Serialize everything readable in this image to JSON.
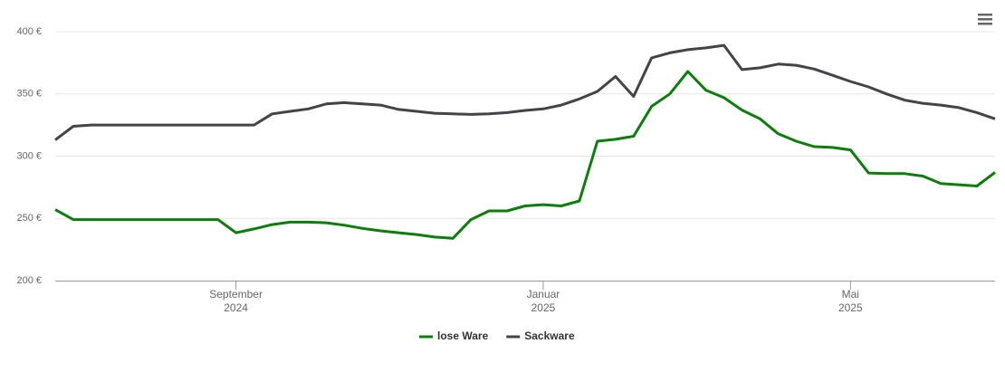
{
  "chart_data": {
    "type": "line",
    "categories": [
      null,
      null,
      null,
      null,
      null,
      null,
      null,
      null,
      null,
      null,
      "September\n2024",
      null,
      null,
      null,
      null,
      null,
      null,
      null,
      null,
      null,
      null,
      null,
      null,
      null,
      null,
      null,
      null,
      "Januar\n2025",
      null,
      null,
      null,
      null,
      null,
      null,
      null,
      null,
      null,
      null,
      null,
      null,
      null,
      null,
      null,
      null,
      "Mai\n2025",
      null,
      null,
      null,
      null,
      null,
      null,
      null,
      null
    ],
    "series": [
      {
        "name": "lose Ware",
        "color": "#0a7f0a",
        "values": [
          257,
          249,
          249,
          249,
          249,
          249,
          249,
          249,
          249,
          249,
          238.5,
          241.5,
          245,
          247,
          247,
          246.5,
          244.5,
          242,
          240,
          238.5,
          237,
          235,
          234,
          249,
          256,
          256,
          260,
          261,
          260,
          264,
          312,
          313.5,
          316,
          340,
          350,
          368,
          353,
          347,
          337,
          330,
          318,
          312,
          307.6,
          307,
          305,
          286.5,
          286,
          286,
          284,
          278,
          277,
          276,
          287
        ]
      },
      {
        "name": "Sackware",
        "color": "#434348",
        "values": [
          313,
          324,
          325,
          325,
          325,
          325,
          325,
          325,
          325,
          325,
          325,
          325,
          334,
          336,
          338,
          342,
          343,
          342,
          341,
          337.5,
          336,
          334.5,
          334,
          333.5,
          334,
          335,
          336.7,
          338,
          341,
          346,
          352,
          364,
          348,
          379,
          383,
          385.5,
          387,
          389,
          369.5,
          371,
          374,
          373,
          370,
          365,
          360,
          355.6,
          350,
          345,
          342.5,
          341,
          339,
          335,
          330
        ]
      }
    ],
    "ylim": [
      200,
      400
    ],
    "yticks": [
      {
        "value": 200,
        "label": "200 €"
      },
      {
        "value": 250,
        "label": "250 €"
      },
      {
        "value": 300,
        "label": "300 €"
      },
      {
        "value": 350,
        "label": "350 €"
      },
      {
        "value": 400,
        "label": "400 €"
      }
    ],
    "grid": true
  }
}
